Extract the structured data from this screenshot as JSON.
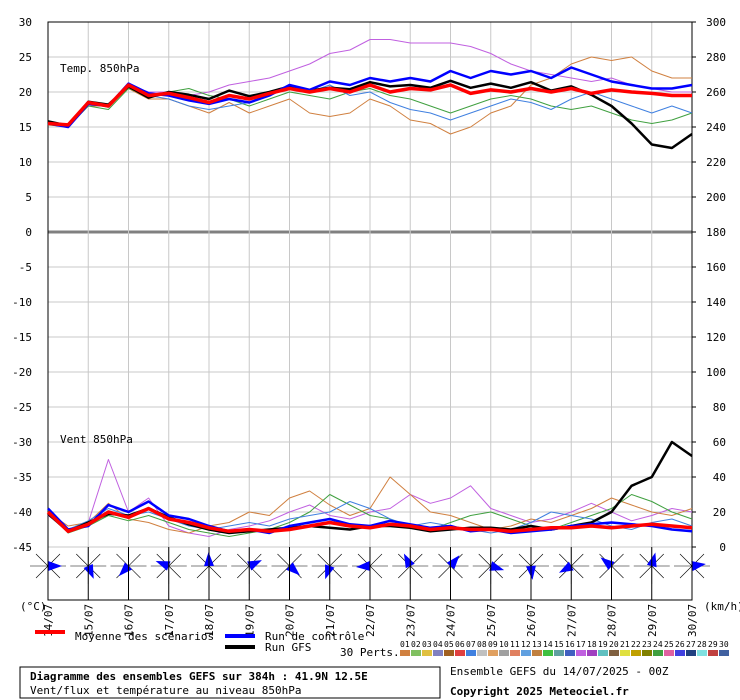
{
  "chart_data": {
    "type": "line",
    "title": "Diagramme des ensembles GEFS sur 384h : 41.9N 12.5E",
    "subtitle": "Vent/flux et température au niveau 850hPa",
    "run_info": "Ensemble GEFS du 14/07/2025 - 00Z",
    "copyright": "Copyright 2025 Meteociel.fr",
    "annotations": [
      "Temp. 850hPa",
      "Vent 850hPa"
    ],
    "y_label": "(°C)",
    "y2_label": "(km/h)",
    "x": [
      0,
      12,
      24,
      36,
      48,
      60,
      72,
      84,
      96,
      108,
      120,
      132,
      144,
      156,
      168,
      180,
      192,
      204,
      216,
      228,
      240,
      252,
      264,
      276,
      288,
      300,
      312,
      324,
      336,
      348,
      360,
      372,
      384
    ],
    "xlim": [
      0,
      384
    ],
    "xticks": [
      {
        "value": 0,
        "label": "14/07"
      },
      {
        "value": 24,
        "label": "15/07"
      },
      {
        "value": 48,
        "label": "16/07"
      },
      {
        "value": 72,
        "label": "17/07"
      },
      {
        "value": 96,
        "label": "18/07"
      },
      {
        "value": 120,
        "label": "19/07"
      },
      {
        "value": 144,
        "label": "20/07"
      },
      {
        "value": 168,
        "label": "21/07"
      },
      {
        "value": 192,
        "label": "22/07"
      },
      {
        "value": 216,
        "label": "23/07"
      },
      {
        "value": 240,
        "label": "24/07"
      },
      {
        "value": 264,
        "label": "25/07"
      },
      {
        "value": 288,
        "label": "26/07"
      },
      {
        "value": 312,
        "label": "27/07"
      },
      {
        "value": 336,
        "label": "28/07"
      },
      {
        "value": 360,
        "label": "29/07"
      },
      {
        "value": 384,
        "label": "30/07"
      }
    ],
    "ylim": [
      -45,
      30
    ],
    "yticks": [
      30,
      25,
      20,
      15,
      10,
      5,
      0,
      -5,
      -10,
      -15,
      -20,
      -25,
      -30,
      -35,
      -40,
      -45
    ],
    "y2lim": [
      0,
      300
    ],
    "y2ticks": [
      300,
      280,
      260,
      240,
      220,
      200,
      180,
      160,
      140,
      120,
      100,
      80,
      60,
      40,
      20,
      0
    ],
    "grid": true,
    "perturbations_label": "30 Perts.",
    "perturbations": [
      {
        "label": "01",
        "color": "#d08040"
      },
      {
        "label": "02",
        "color": "#80c060"
      },
      {
        "label": "03",
        "color": "#e0c040"
      },
      {
        "label": "04",
        "color": "#8080c0"
      },
      {
        "label": "05",
        "color": "#a06020"
      },
      {
        "label": "06",
        "color": "#e04040"
      },
      {
        "label": "07",
        "color": "#4080e0"
      },
      {
        "label": "08",
        "color": "#c0c0c0"
      },
      {
        "label": "09",
        "color": "#e0a060"
      },
      {
        "label": "10",
        "color": "#a0a0a0"
      },
      {
        "label": "11",
        "color": "#e08060"
      },
      {
        "label": "12",
        "color": "#60a0e0"
      },
      {
        "label": "13",
        "color": "#c08040"
      },
      {
        "label": "14",
        "color": "#40c040"
      },
      {
        "label": "15",
        "color": "#60a0a0"
      },
      {
        "label": "16",
        "color": "#4060c0"
      },
      {
        "label": "17",
        "color": "#c060e0"
      },
      {
        "label": "18",
        "color": "#a040c0"
      },
      {
        "label": "19",
        "color": "#60c0c0"
      },
      {
        "label": "20",
        "color": "#806040"
      },
      {
        "label": "21",
        "color": "#e0e040"
      },
      {
        "label": "22",
        "color": "#c0a000"
      },
      {
        "label": "23",
        "color": "#808000"
      },
      {
        "label": "24",
        "color": "#40a040"
      },
      {
        "label": "25",
        "color": "#e060a0"
      },
      {
        "label": "26",
        "color": "#4040e0"
      },
      {
        "label": "27",
        "color": "#204080"
      },
      {
        "label": "28",
        "color": "#80e0e0"
      },
      {
        "label": "29",
        "color": "#c04040"
      },
      {
        "label": "30",
        "color": "#4060a0"
      }
    ],
    "series": [
      {
        "color": "#c060e0",
        "width": 1,
        "temperature": [
          15.5,
          15,
          18.5,
          18,
          21,
          20,
          20,
          19.5,
          20,
          21,
          21.5,
          22,
          23,
          24,
          25.5,
          26,
          27.5,
          27.5,
          27,
          27,
          27,
          26.5,
          25.5,
          24,
          23,
          22.5,
          22,
          21.5,
          22,
          21,
          20.5,
          20,
          20
        ],
        "wind": [
          18,
          10,
          14,
          50,
          20,
          28,
          12,
          8,
          6,
          10,
          12,
          15,
          20,
          24,
          18,
          16,
          20,
          22,
          30,
          25,
          28,
          35,
          22,
          18,
          14,
          16,
          20,
          25,
          20,
          15,
          18,
          22,
          20
        ]
      },
      {
        "color": "#d08040",
        "width": 1,
        "temperature": [
          15.5,
          15.5,
          18,
          18,
          20.5,
          19,
          19,
          18,
          17,
          18.5,
          17,
          18,
          19,
          17,
          16.5,
          17,
          19,
          18,
          16,
          15.5,
          14,
          15,
          17,
          18,
          21,
          22,
          24,
          25,
          24.5,
          25,
          23,
          22,
          22
        ],
        "wind": [
          20,
          12,
          14,
          25,
          16,
          14,
          10,
          8,
          12,
          14,
          20,
          18,
          28,
          32,
          24,
          18,
          22,
          40,
          30,
          20,
          18,
          14,
          10,
          12,
          16,
          14,
          18,
          22,
          28,
          24,
          20,
          18,
          22
        ]
      },
      {
        "color": "#40a040",
        "width": 1,
        "temperature": [
          15.3,
          15,
          18,
          17.5,
          20.5,
          19.5,
          20,
          20.5,
          19.5,
          19,
          18,
          19,
          20,
          19.5,
          19,
          20,
          20.5,
          19.5,
          19,
          18,
          17,
          18,
          19,
          19.5,
          19,
          18,
          17.5,
          18,
          17,
          16,
          15.5,
          16,
          17
        ],
        "wind": [
          21,
          8,
          12,
          18,
          15,
          18,
          14,
          10,
          8,
          6,
          8,
          10,
          14,
          20,
          30,
          24,
          18,
          16,
          12,
          10,
          14,
          18,
          20,
          16,
          12,
          10,
          14,
          18,
          22,
          30,
          26,
          20,
          16
        ]
      },
      {
        "color": "#4080e0",
        "width": 1,
        "temperature": [
          15.5,
          15.2,
          18.5,
          17.8,
          21,
          19.5,
          19,
          18,
          17.5,
          18,
          18.5,
          19.5,
          21,
          20,
          21,
          19.5,
          20,
          18.5,
          17.5,
          17,
          16,
          17,
          18,
          19,
          18.5,
          17.5,
          19,
          20,
          19,
          18,
          17,
          18,
          17
        ],
        "wind": [
          19,
          10,
          15,
          22,
          18,
          20,
          16,
          12,
          10,
          12,
          14,
          12,
          16,
          18,
          20,
          26,
          22,
          16,
          12,
          14,
          12,
          10,
          8,
          10,
          14,
          20,
          18,
          16,
          12,
          10,
          14,
          16,
          12
        ]
      },
      {
        "name": "Run GFS",
        "color": "#000000",
        "width": 2.5,
        "temperature": [
          15.8,
          15.2,
          18.6,
          18.2,
          20.8,
          19.2,
          20,
          19.6,
          19,
          20.2,
          19.4,
          20,
          20.8,
          20.2,
          20.6,
          20.4,
          21.4,
          20.8,
          21,
          20.6,
          21.6,
          20.6,
          21.2,
          20.6,
          21.4,
          20.2,
          20.8,
          19.6,
          18,
          15.5,
          12.5,
          12,
          14
        ],
        "wind": [
          19,
          9,
          14,
          19,
          18,
          22,
          17,
          13,
          10,
          8,
          9,
          10,
          11,
          12,
          11,
          10,
          12,
          12,
          11,
          9,
          10,
          11,
          11,
          10,
          12,
          10,
          12,
          14,
          20,
          35,
          40,
          60,
          52
        ]
      },
      {
        "name": "Run de contrôle",
        "color": "#0000ff",
        "width": 2.5,
        "temperature": [
          15.5,
          15,
          18.3,
          18,
          21.2,
          19.8,
          19.5,
          18.8,
          18.3,
          19,
          18.5,
          19.5,
          21,
          20.3,
          21.5,
          21,
          22,
          21.5,
          22,
          21.5,
          23,
          22,
          23,
          22.5,
          23,
          22,
          23.5,
          22.5,
          21.5,
          21,
          20.5,
          20.5,
          21
        ],
        "wind": [
          22,
          10,
          12,
          24,
          20,
          26,
          18,
          16,
          12,
          9,
          10,
          8,
          12,
          14,
          16,
          13,
          12,
          15,
          13,
          11,
          12,
          9,
          10,
          8,
          9,
          10,
          12,
          13,
          14,
          13,
          12,
          10,
          9
        ]
      },
      {
        "name": "Moyenne des scénarios",
        "color": "#ff0000",
        "width": 3.5,
        "temperature": [
          15.5,
          15.3,
          18.5,
          18,
          21,
          19.5,
          19.8,
          19.2,
          18.5,
          19.5,
          19,
          19.8,
          20.5,
          20,
          20.5,
          20,
          21,
          20,
          20.5,
          20.3,
          21,
          19.8,
          20.3,
          20,
          20.5,
          20,
          20.5,
          19.8,
          20.3,
          20,
          19.8,
          19.5,
          19.5
        ],
        "wind": [
          20,
          9,
          13,
          20,
          17,
          22,
          16,
          14,
          11,
          9,
          10,
          9,
          10,
          12,
          14,
          12,
          11,
          13,
          12,
          10,
          11,
          10,
          10,
          9,
          10,
          11,
          11,
          12,
          11,
          12,
          13,
          12,
          11
        ]
      }
    ]
  }
}
